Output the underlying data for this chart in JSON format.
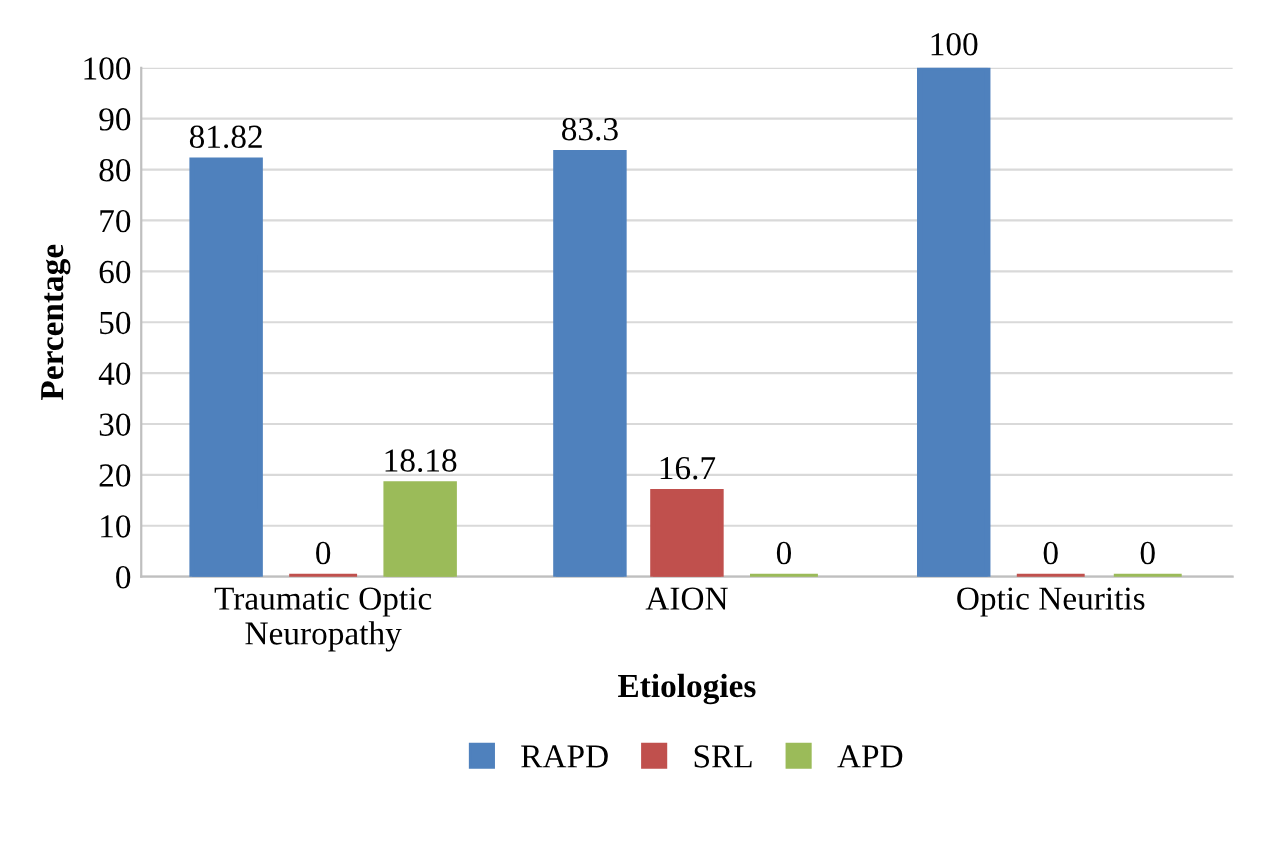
{
  "chart_data": {
    "type": "bar",
    "xlabel": "Etiologies",
    "ylabel": "Percentage",
    "categories": [
      "Traumatic Optic\nNeuropathy",
      "AION",
      "Optic Neuritis"
    ],
    "series": [
      {
        "name": "RAPD",
        "color": "#4f81bd",
        "values": [
          81.82,
          83.3,
          100
        ]
      },
      {
        "name": "SRL",
        "color": "#c0504d",
        "values": [
          0,
          16.7,
          0
        ]
      },
      {
        "name": "APD",
        "color": "#9bbb59",
        "values": [
          18.18,
          0,
          0
        ]
      }
    ],
    "ylim": [
      0,
      100
    ],
    "yticks": [
      0,
      10,
      20,
      30,
      40,
      50,
      60,
      70,
      80,
      90,
      100
    ],
    "grid": "y",
    "legend": "bottom",
    "data_labels": true
  }
}
